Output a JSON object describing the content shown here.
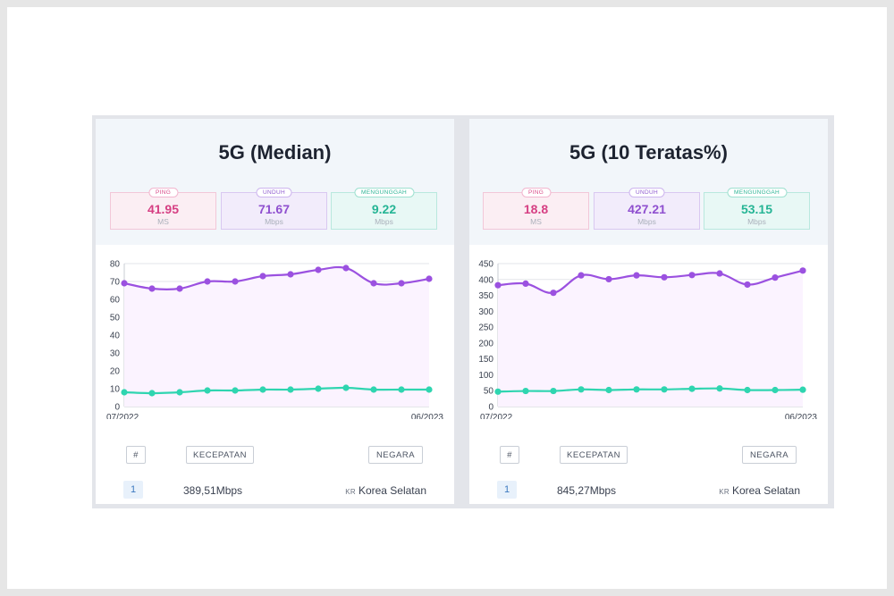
{
  "panels": [
    {
      "title": "5G (Median)",
      "metrics": {
        "ping": {
          "label": "PING",
          "value": "41.95",
          "unit": "MS"
        },
        "download": {
          "label": "UNDUH",
          "value": "71.67",
          "unit": "Mbps"
        },
        "upload": {
          "label": "MENGUNGGAH",
          "value": "9.22",
          "unit": "Mbps"
        }
      },
      "table": {
        "headers": {
          "rank": "#",
          "speed": "KECEPATAN",
          "country": "NEGARA"
        },
        "row": {
          "rank": "1",
          "speed": "389,51Mbps",
          "country_code": "KR",
          "country": "Korea Selatan"
        }
      }
    },
    {
      "title": "5G (10 Teratas%)",
      "metrics": {
        "ping": {
          "label": "PING",
          "value": "18.8",
          "unit": "MS"
        },
        "download": {
          "label": "UNDUH",
          "value": "427.21",
          "unit": "Mbps"
        },
        "upload": {
          "label": "MENGUNGGAH",
          "value": "53.15",
          "unit": "Mbps"
        }
      },
      "table": {
        "headers": {
          "rank": "#",
          "speed": "KECEPATAN",
          "country": "NEGARA"
        },
        "row": {
          "rank": "1",
          "speed": "845,27Mbps",
          "country_code": "KR",
          "country": "Korea Selatan"
        }
      }
    }
  ],
  "chart_data": [
    {
      "type": "line",
      "title": "5G (Median)",
      "x_start_label": "07/2022",
      "x_end_label": "06/2023",
      "ylim": [
        0,
        80
      ],
      "yticks": [
        0,
        10,
        20,
        30,
        40,
        50,
        60,
        70,
        80
      ],
      "grid": true,
      "series": [
        {
          "name": "Unduh",
          "color": "#9b51e0",
          "fill": "#fbf3ff",
          "values": [
            69,
            66,
            66,
            70,
            70,
            73,
            74,
            76.5,
            77.5,
            69,
            69,
            71.5
          ]
        },
        {
          "name": "Mengunggah",
          "color": "#2fd5b0",
          "values": [
            8,
            7.5,
            8,
            9,
            9,
            9.5,
            9.5,
            10,
            10.5,
            9.5,
            9.5,
            9.5
          ]
        }
      ]
    },
    {
      "type": "line",
      "title": "5G (10 Teratas%)",
      "x_start_label": "07/2022",
      "x_end_label": "06/2023",
      "ylim": [
        0,
        450
      ],
      "yticks": [
        0,
        50,
        100,
        150,
        200,
        250,
        300,
        350,
        400,
        450
      ],
      "grid": true,
      "series": [
        {
          "name": "Unduh",
          "color": "#9b51e0",
          "fill": "#fbf3ff",
          "values": [
            382,
            387,
            358,
            413,
            401,
            413,
            407,
            414,
            419,
            384,
            406,
            428
          ]
        },
        {
          "name": "Mengunggah",
          "color": "#2fd5b0",
          "values": [
            47,
            49,
            49,
            54,
            52,
            54,
            54,
            56,
            57,
            52,
            52,
            53
          ]
        }
      ]
    }
  ]
}
